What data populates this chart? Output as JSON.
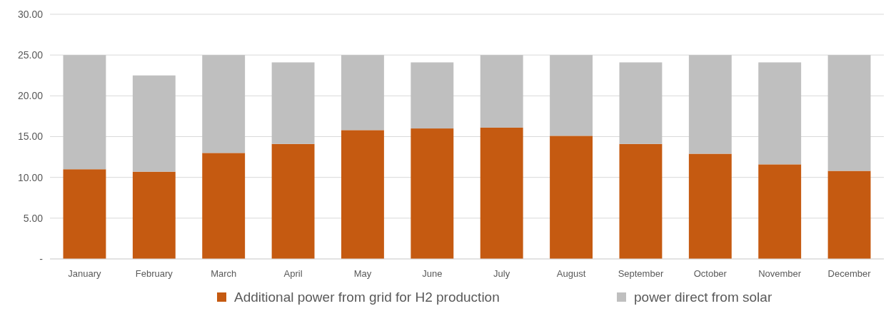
{
  "chart_data": {
    "type": "bar",
    "stacked": true,
    "categories": [
      "January",
      "February",
      "March",
      "April",
      "May",
      "June",
      "July",
      "August",
      "September",
      "October",
      "November",
      "December"
    ],
    "series": [
      {
        "name": "Additional power from grid for H2 production",
        "color": "#c55a11",
        "values": [
          11.0,
          10.7,
          13.0,
          14.1,
          15.8,
          16.0,
          16.1,
          15.1,
          14.1,
          12.9,
          11.6,
          10.8
        ]
      },
      {
        "name": "power direct from solar",
        "color": "#bfbfbf",
        "values": [
          14.0,
          11.8,
          12.0,
          10.0,
          9.2,
          8.1,
          8.9,
          9.9,
          10.0,
          12.1,
          12.5,
          14.2
        ]
      }
    ],
    "ylim": [
      0,
      30
    ],
    "yticks": [
      {
        "value": 0,
        "label": "-"
      },
      {
        "value": 5,
        "label": "5.00"
      },
      {
        "value": 10,
        "label": "10.00"
      },
      {
        "value": 15,
        "label": "15.00"
      },
      {
        "value": 20,
        "label": "20.00"
      },
      {
        "value": 25,
        "label": "25.00"
      },
      {
        "value": 30,
        "label": "30.00"
      }
    ],
    "grid": "y",
    "legend": "bottom"
  }
}
